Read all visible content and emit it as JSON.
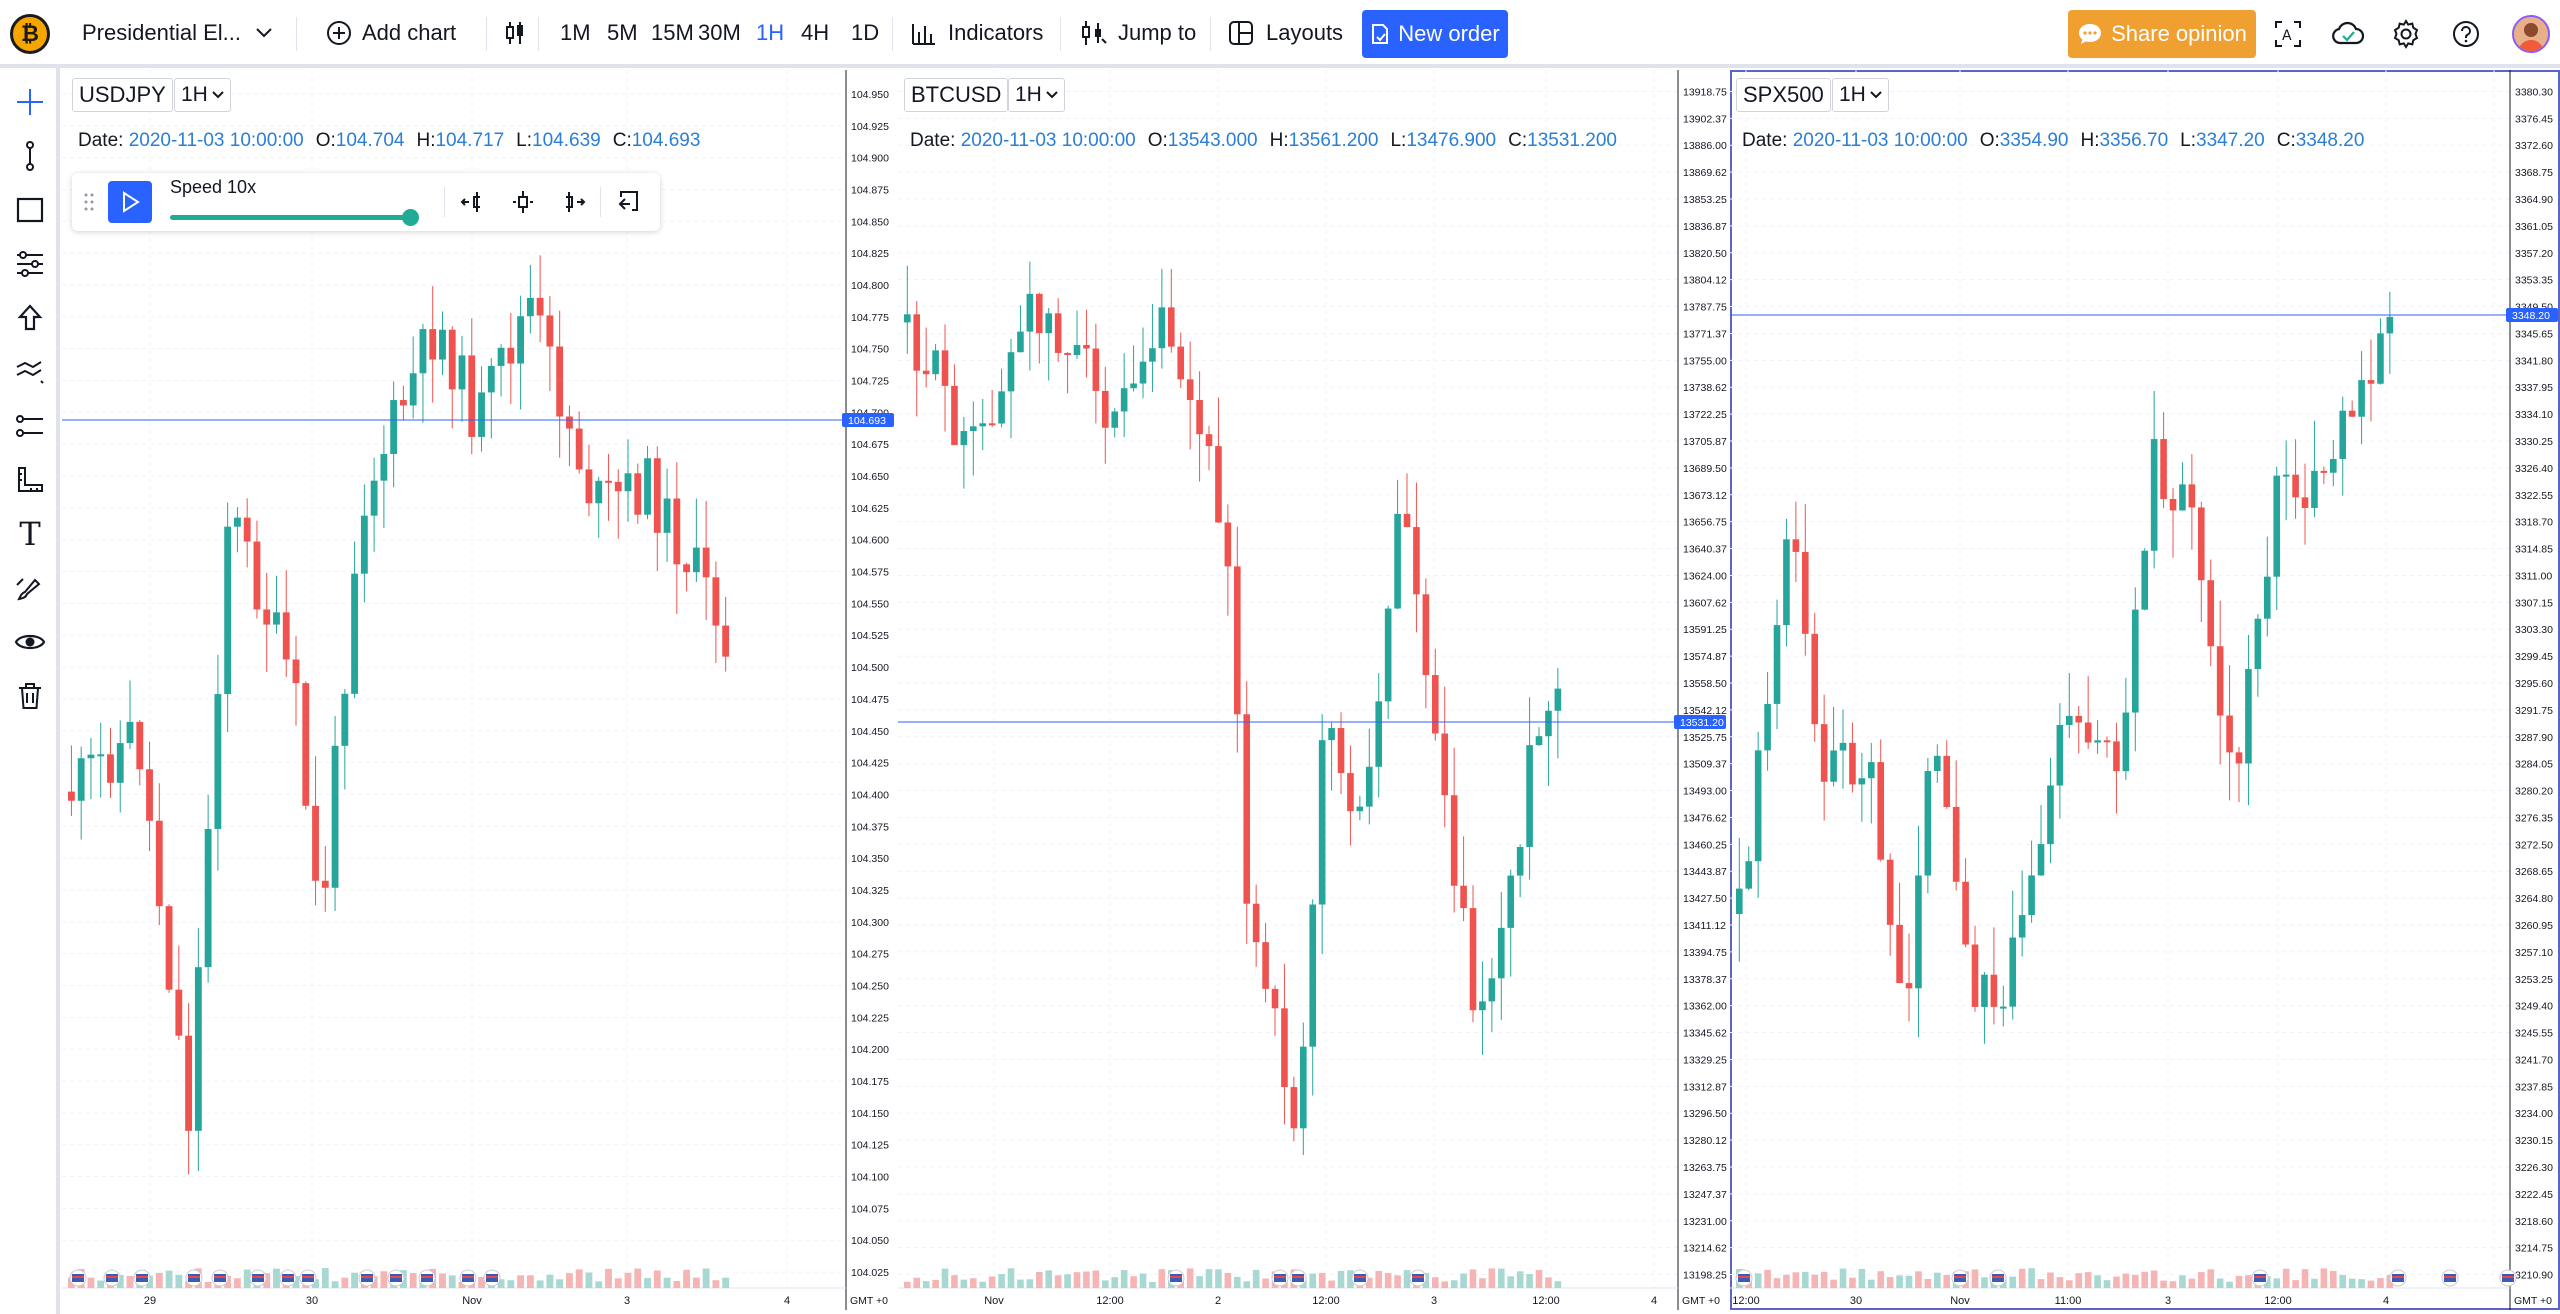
{
  "topbar": {
    "layout_name": "Presidential El...",
    "add_chart": "Add chart",
    "timeframes": [
      {
        "label": "1M",
        "active": false
      },
      {
        "label": "5M",
        "active": false
      },
      {
        "label": "15M",
        "active": false
      },
      {
        "label": "30M",
        "active": false
      },
      {
        "label": "1H",
        "active": true
      },
      {
        "label": "4H",
        "active": false
      },
      {
        "label": "1D",
        "active": false
      }
    ],
    "indicators": "Indicators",
    "jump_to": "Jump to",
    "layouts": "Layouts",
    "new_order": "New order",
    "share_opinion": "Share opinion",
    "logo_glyph": "₿",
    "colors": {
      "accent": "#2962ff",
      "share": "#f0a030"
    }
  },
  "left_toolbar": {
    "icons": [
      "crosshair-icon",
      "trend-line-icon",
      "rectangle-icon",
      "fib-icon",
      "arrow-up-icon",
      "pattern-icon",
      "measure-icon",
      "ruler-icon",
      "text-icon",
      "brush-icon",
      "eye-icon",
      "trash-icon"
    ],
    "text_tool_glyph": "T"
  },
  "replay": {
    "speed_label": "Speed 10x",
    "speed_level": 1.0
  },
  "panes": [
    {
      "symbol": "USDJPY",
      "interval": "1H",
      "ohlc": {
        "date_label": "Date:",
        "date": "2020-11-03 10:00:00",
        "o_label": "O:",
        "o": "104.704",
        "h_label": "H:",
        "h": "104.717",
        "l_label": "L:",
        "l": "104.639",
        "c_label": "C:",
        "c": "104.693"
      },
      "last_price": "104.693",
      "yaxis": {
        "ticks": [
          "104.950",
          "104.925",
          "104.900",
          "104.875",
          "104.850",
          "104.825",
          "104.800",
          "104.775",
          "104.750",
          "104.725",
          "104.700",
          "104.675",
          "104.650",
          "104.625",
          "104.600",
          "104.575",
          "104.550",
          "104.525",
          "104.500",
          "104.475",
          "104.450",
          "104.425",
          "104.400",
          "104.375",
          "104.350",
          "104.325",
          "104.300",
          "104.275",
          "104.250",
          "104.225",
          "104.200",
          "104.175",
          "104.150",
          "104.125",
          "104.100",
          "104.075",
          "104.050",
          "104.025"
        ]
      },
      "xaxis": {
        "ticks": [
          "29",
          "30",
          "Nov",
          "3",
          "4"
        ],
        "tz": "GMT +0"
      }
    },
    {
      "symbol": "BTCUSD",
      "interval": "1H",
      "ohlc": {
        "date_label": "Date:",
        "date": "2020-11-03 10:00:00",
        "o_label": "O:",
        "o": "13543.000",
        "h_label": "H:",
        "h": "13561.200",
        "l_label": "L:",
        "l": "13476.900",
        "c_label": "C:",
        "c": "13531.200"
      },
      "last_price": "13531.20",
      "yaxis": {
        "ticks": [
          "13918.75",
          "13902.37",
          "13886.00",
          "13869.62",
          "13853.25",
          "13836.87",
          "13820.50",
          "13804.12",
          "13787.75",
          "13771.37",
          "13755.00",
          "13738.62",
          "13722.25",
          "13705.87",
          "13689.50",
          "13673.12",
          "13656.75",
          "13640.37",
          "13624.00",
          "13607.62",
          "13591.25",
          "13574.87",
          "13558.50",
          "13542.12",
          "13525.75",
          "13509.37",
          "13493.00",
          "13476.62",
          "13460.25",
          "13443.87",
          "13427.50",
          "13411.12",
          "13394.75",
          "13378.37",
          "13362.00",
          "13345.62",
          "13329.25",
          "13312.87",
          "13296.50",
          "13280.12",
          "13263.75",
          "13247.37",
          "13231.00",
          "13214.62",
          "13198.25"
        ]
      },
      "xaxis": {
        "ticks": [
          "Nov",
          "12:00",
          "2",
          "12:00",
          "3",
          "12:00",
          "4"
        ],
        "tz": "GMT +0"
      }
    },
    {
      "symbol": "SPX500",
      "interval": "1H",
      "ohlc": {
        "date_label": "Date:",
        "date": "2020-11-03 10:00:00",
        "o_label": "O:",
        "o": "3354.90",
        "h_label": "H:",
        "h": "3356.70",
        "l_label": "L:",
        "l": "3347.20",
        "c_label": "C:",
        "c": "3348.20"
      },
      "last_price": "3348.20",
      "yaxis": {
        "ticks": [
          "3380.30",
          "3376.45",
          "3372.60",
          "3368.75",
          "3364.90",
          "3361.05",
          "3357.20",
          "3353.35",
          "3349.50",
          "3345.65",
          "3341.80",
          "3337.95",
          "3334.10",
          "3330.25",
          "3326.40",
          "3322.55",
          "3318.70",
          "3314.85",
          "3311.00",
          "3307.15",
          "3303.30",
          "3299.45",
          "3295.60",
          "3291.75",
          "3287.90",
          "3284.05",
          "3280.20",
          "3276.35",
          "3272.50",
          "3268.65",
          "3264.80",
          "3260.95",
          "3257.10",
          "3253.25",
          "3249.40",
          "3245.55",
          "3241.70",
          "3237.85",
          "3234.00",
          "3230.15",
          "3226.30",
          "3222.45",
          "3218.60",
          "3214.75",
          "3210.90"
        ]
      },
      "xaxis": {
        "ticks": [
          "12:00",
          "30",
          "Nov",
          "11:00",
          "3",
          "12:00",
          "4"
        ],
        "tz": "GMT +0"
      }
    }
  ],
  "chart_colors": {
    "up": "#26a69a",
    "down": "#ef5350",
    "priceline": "#2962ff",
    "grid": "#f0f3fa"
  }
}
